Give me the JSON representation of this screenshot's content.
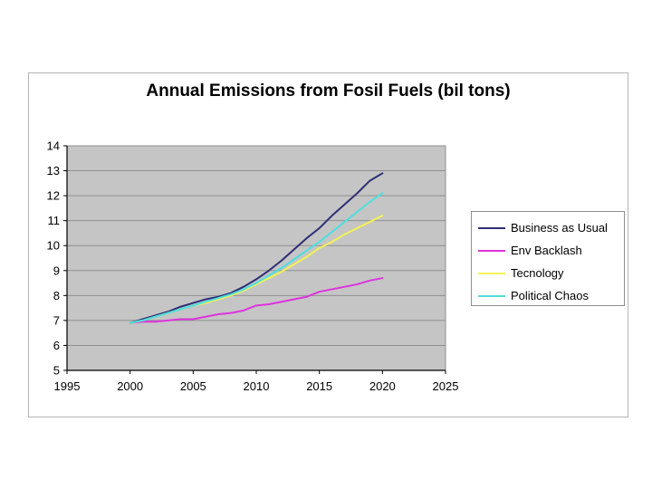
{
  "slide": {
    "title": "Annual Emissions from Fosil Fuels (bil tons)"
  },
  "colors": {
    "plot_background": "#c5c5c5",
    "gridline": "#8f8f8f",
    "axis": "#000000",
    "chart_frame_border": "#b5b5b5",
    "legend_border": "#8f8f8f"
  },
  "chart_data": {
    "type": "line",
    "title": "Annual Emissions from Fosil Fuels (bil tons)",
    "xlabel": "",
    "ylabel": "",
    "xlim": [
      1995,
      2025
    ],
    "ylim": [
      5,
      14
    ],
    "x_ticks": [
      1995,
      2000,
      2005,
      2010,
      2015,
      2020,
      2025
    ],
    "y_ticks": [
      5,
      6,
      7,
      8,
      9,
      10,
      11,
      12,
      13,
      14
    ],
    "grid": "horizontal-only",
    "legend_position": "right",
    "x": [
      2000,
      2001,
      2002,
      2003,
      2004,
      2005,
      2006,
      2007,
      2008,
      2009,
      2010,
      2011,
      2012,
      2013,
      2014,
      2015,
      2016,
      2017,
      2018,
      2019,
      2020
    ],
    "series": [
      {
        "name": "Business as Usual",
        "color": "#2e2e75",
        "values": [
          6.9,
          7.05,
          7.2,
          7.35,
          7.55,
          7.7,
          7.85,
          7.95,
          8.1,
          8.35,
          8.65,
          9.0,
          9.4,
          9.85,
          10.3,
          10.7,
          11.2,
          11.65,
          12.1,
          12.6,
          12.9
        ]
      },
      {
        "name": "Env Backlash",
        "color": "#dd33dd",
        "values": [
          6.9,
          6.95,
          6.95,
          7.0,
          7.05,
          7.05,
          7.15,
          7.25,
          7.3,
          7.4,
          7.6,
          7.65,
          7.75,
          7.85,
          7.95,
          8.15,
          8.25,
          8.35,
          8.45,
          8.6,
          8.7
        ]
      },
      {
        "name": "Tecnology",
        "color": "#f2f256",
        "values": [
          6.9,
          7.0,
          7.15,
          7.3,
          7.45,
          7.6,
          7.7,
          7.85,
          8.0,
          8.2,
          8.45,
          8.7,
          8.95,
          9.25,
          9.55,
          9.9,
          10.15,
          10.45,
          10.7,
          10.95,
          11.2
        ]
      },
      {
        "name": "Political Chaos",
        "color": "#4fdede",
        "values": [
          6.9,
          7.0,
          7.15,
          7.3,
          7.45,
          7.6,
          7.75,
          7.9,
          8.05,
          8.25,
          8.5,
          8.8,
          9.1,
          9.45,
          9.8,
          10.15,
          10.55,
          10.95,
          11.35,
          11.75,
          12.1
        ]
      }
    ]
  }
}
